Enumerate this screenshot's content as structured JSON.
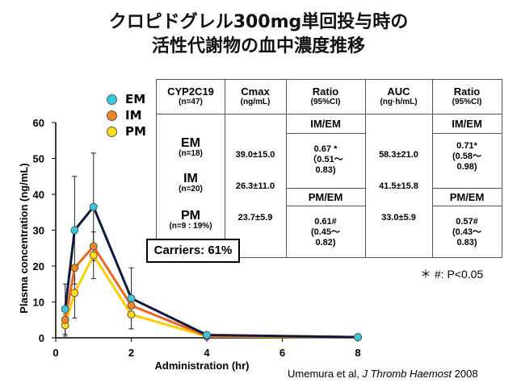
{
  "title_line1": "クロピドグレル300mg単回投与時の",
  "title_line2": "活性代謝物の血中濃度推移",
  "legend": [
    {
      "label": "EM",
      "color": "#33ccdd"
    },
    {
      "label": "IM",
      "color": "#ee8822"
    },
    {
      "label": "PM",
      "color": "#ffdd11"
    }
  ],
  "chart_data": {
    "type": "line",
    "xlabel": "Administration (hr)",
    "ylabel": "Plasma concentration (ng/mL)",
    "xlim": [
      0,
      8
    ],
    "ylim": [
      0,
      60
    ],
    "xticks": [
      0,
      2,
      4,
      6,
      8
    ],
    "yticks": [
      0,
      10,
      20,
      30,
      40,
      50,
      60
    ],
    "series": [
      {
        "name": "EM",
        "line_color": "#0d1a3d",
        "marker_color": "#33ccdd",
        "x": [
          0.25,
          0.5,
          1,
          2,
          4,
          8
        ],
        "y": [
          8,
          30,
          36.5,
          11,
          0.8,
          0.2
        ],
        "error": [
          7,
          15,
          15,
          8.5,
          0,
          0
        ]
      },
      {
        "name": "IM",
        "line_color": "#ee6622",
        "marker_color": "#ee8822",
        "x": [
          0.25,
          0.5,
          1,
          2,
          4,
          8
        ],
        "y": [
          5,
          19.5,
          25.5,
          9,
          0.5,
          0.2
        ],
        "error": [
          0,
          0,
          0,
          0,
          0,
          0
        ]
      },
      {
        "name": "PM",
        "line_color": "#ffcc00",
        "marker_color": "#ffdd11",
        "x": [
          0.25,
          0.5,
          1,
          2,
          4,
          8
        ],
        "y": [
          3.5,
          12.5,
          23,
          6.5,
          0.4,
          0.2
        ],
        "error": [
          3,
          7,
          6.5,
          4,
          0,
          0
        ]
      }
    ]
  },
  "table": {
    "headers": [
      {
        "main": "CYP2C19",
        "sub": "(n=47)"
      },
      {
        "main": "Cmax",
        "sub": "(ng/mL)"
      },
      {
        "main": "Ratio",
        "sub": "(95%CI)"
      },
      {
        "main": "AUC",
        "sub": "(ng·h/mL)"
      },
      {
        "main": "Ratio",
        "sub": "(95%CI)"
      }
    ],
    "rows": [
      {
        "label": "EM",
        "n": "(n=18)",
        "cmax": "39.0±15.0",
        "auc": "58.3±21.0"
      },
      {
        "label": "IM",
        "n": "(n=20)",
        "cmax": "26.3±11.0",
        "auc": "41.5±15.8"
      },
      {
        "label": "PM",
        "n": "(n=9 : 19%)",
        "cmax": "23.7±5.9",
        "auc": "33.0±5.9"
      }
    ],
    "im_em_header": "IM/EM",
    "pm_em_header": "PM/EM",
    "cmax_ratio_im": [
      "0.67 *",
      "（0.51～",
      "0.83)"
    ],
    "cmax_ratio_pm": [
      "0.61#",
      "(0.45～",
      "0.82)"
    ],
    "auc_ratio_im": [
      "0.71*",
      "(0.58～",
      "0.98)"
    ],
    "auc_ratio_pm": [
      "0.57#",
      "(0.43～",
      "0.83)"
    ]
  },
  "carriers_label": "Carriers: 61%",
  "footnote": "＊ #:  P<0.05",
  "citation_prefix": "Umemura et al, ",
  "citation_journal": "J Thromb Haemost",
  "citation_year": " 2008"
}
